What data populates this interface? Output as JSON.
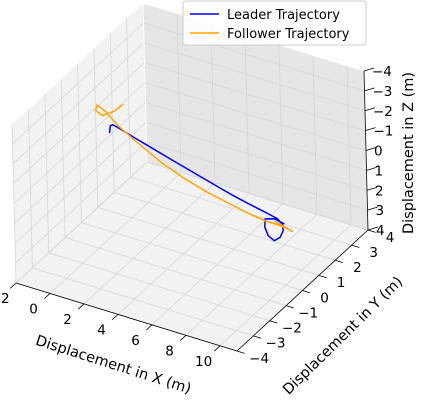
{
  "chart_data": {
    "type": "line",
    "projection": "3d",
    "title": "",
    "xlabel": "Displacement in X (m)",
    "ylabel": "Displacement in Y (m)",
    "zlabel": "Displacement in Z (m)",
    "xlim": [
      -2,
      11
    ],
    "ylim": [
      -4,
      4
    ],
    "zlim": [
      -4,
      4
    ],
    "z_inverted": true,
    "xticks": [
      "−2",
      "0",
      "2",
      "4",
      "6",
      "8",
      "10"
    ],
    "yticks": [
      "−4",
      "−3",
      "−2",
      "−1",
      "0",
      "1",
      "2",
      "3",
      "4"
    ],
    "zticks": [
      "−4",
      "−3",
      "−2",
      "−1",
      "0",
      "1",
      "2",
      "3",
      "4"
    ],
    "grid": true,
    "legend": "top-right",
    "series": [
      {
        "name": "Leader Trajectory",
        "color": "#0000ff",
        "x": [
          -0.3,
          -0.15,
          0.1,
          0.6,
          1.4,
          2.4,
          3.6,
          4.8,
          6.0,
          7.0,
          8.0,
          8.8,
          9.5,
          9.9,
          10.1,
          10.15,
          10.0,
          9.6,
          9.2,
          9.0,
          9.4,
          10.0
        ],
        "y": [
          0.1,
          0.0,
          -0.1,
          -0.15,
          -0.2,
          -0.2,
          -0.2,
          -0.15,
          -0.1,
          -0.05,
          0.0,
          0.05,
          0.1,
          0.0,
          -0.15,
          -0.4,
          -0.6,
          -0.55,
          -0.35,
          -0.1,
          0.05,
          0.0
        ],
        "z": [
          -0.9,
          -1.35,
          -1.55,
          -1.5,
          -1.35,
          -1.1,
          -0.8,
          -0.45,
          -0.1,
          0.2,
          0.45,
          0.65,
          0.85,
          0.95,
          1.1,
          1.25,
          1.3,
          1.2,
          1.0,
          0.85,
          0.85,
          0.9
        ]
      },
      {
        "name": "Follower Trajectory",
        "color": "#ffa500",
        "x": [
          0.6,
          0.2,
          -0.4,
          -0.9,
          -1.0,
          -0.6,
          0.2,
          1.4,
          2.8,
          4.2,
          5.6,
          7.0,
          8.2,
          9.2,
          10.0,
          10.5,
          10.7,
          10.4,
          9.9,
          9.3
        ],
        "y": [
          0.0,
          -0.1,
          -0.2,
          -0.1,
          0.1,
          0.2,
          0.15,
          0.1,
          0.0,
          -0.05,
          -0.1,
          -0.1,
          -0.15,
          -0.2,
          -0.25,
          -0.3,
          -0.2,
          0.0,
          0.15,
          0.2
        ],
        "z": [
          -2.6,
          -2.25,
          -1.95,
          -2.0,
          -2.1,
          -1.8,
          -1.3,
          -0.8,
          -0.3,
          0.1,
          0.4,
          0.65,
          0.8,
          0.85,
          0.8,
          0.8,
          0.95,
          1.15,
          1.2,
          1.15
        ]
      }
    ]
  }
}
